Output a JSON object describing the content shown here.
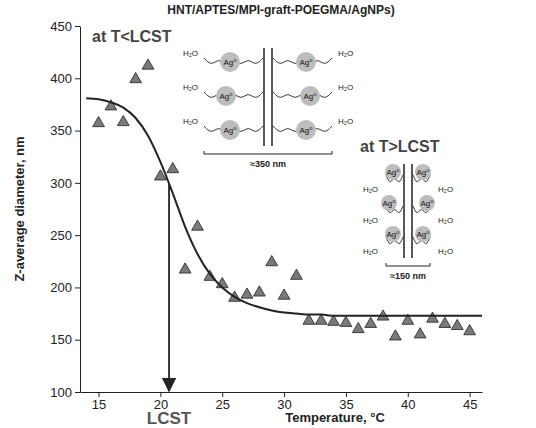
{
  "chart_data": {
    "type": "scatter",
    "title": "HNT/APTES/MPI-graft-POEGMA/AgNPs)",
    "x_label": "Temperature, °C",
    "y_label": "Z-average diameter, nm",
    "xlim": [
      13.5,
      46
    ],
    "ylim": [
      100,
      450
    ],
    "xticks": [
      15,
      20,
      25,
      30,
      35,
      40,
      45
    ],
    "yticks": [
      100,
      150,
      200,
      250,
      300,
      350,
      400,
      450
    ],
    "grid": false,
    "series": [
      {
        "type": "scatter",
        "marker": "triangle",
        "color": "#7a7a7a",
        "x": [
          15,
          16,
          17,
          18,
          19,
          20,
          21,
          22,
          23,
          24,
          25,
          26,
          27,
          28,
          29,
          30,
          31,
          32,
          33,
          34,
          35,
          36,
          37,
          38,
          39,
          40,
          41,
          42,
          43,
          44,
          45
        ],
        "values": [
          357,
          373,
          358,
          399,
          412,
          306,
          313,
          217,
          258,
          210,
          203,
          190,
          193,
          195,
          224,
          192,
          211,
          168,
          168,
          167,
          166,
          160,
          165,
          172,
          153,
          168,
          155,
          170,
          165,
          163,
          158
        ]
      },
      {
        "type": "line",
        "line_style": "solid",
        "color": "#222222",
        "x": [
          14,
          15,
          16,
          17,
          18,
          19,
          20,
          21,
          22,
          23,
          24,
          25,
          26,
          27,
          28,
          29,
          30,
          31,
          32,
          33,
          34,
          35,
          36,
          37,
          38,
          39,
          40,
          41,
          42,
          43,
          44,
          45,
          46
        ],
        "values": [
          381,
          380,
          377,
          372,
          362,
          345,
          320,
          290,
          258,
          232,
          213,
          200,
          191,
          185,
          181,
          178,
          176,
          175,
          174,
          174,
          173,
          173,
          173,
          173,
          173,
          173,
          173,
          173,
          173,
          173,
          173,
          173,
          173
        ]
      }
    ],
    "lcst": {
      "label": "LCST",
      "value": 20.7
    },
    "insets": [
      {
        "title": "at T<LCST",
        "particle_label": "Ag⁰",
        "solvent_label": "H₂O",
        "size_label": "≈350 nm"
      },
      {
        "title": "at T>LCST",
        "particle_label": "Ag⁰",
        "solvent_label": "H₂O",
        "size_label": "≈150 nm"
      }
    ]
  }
}
